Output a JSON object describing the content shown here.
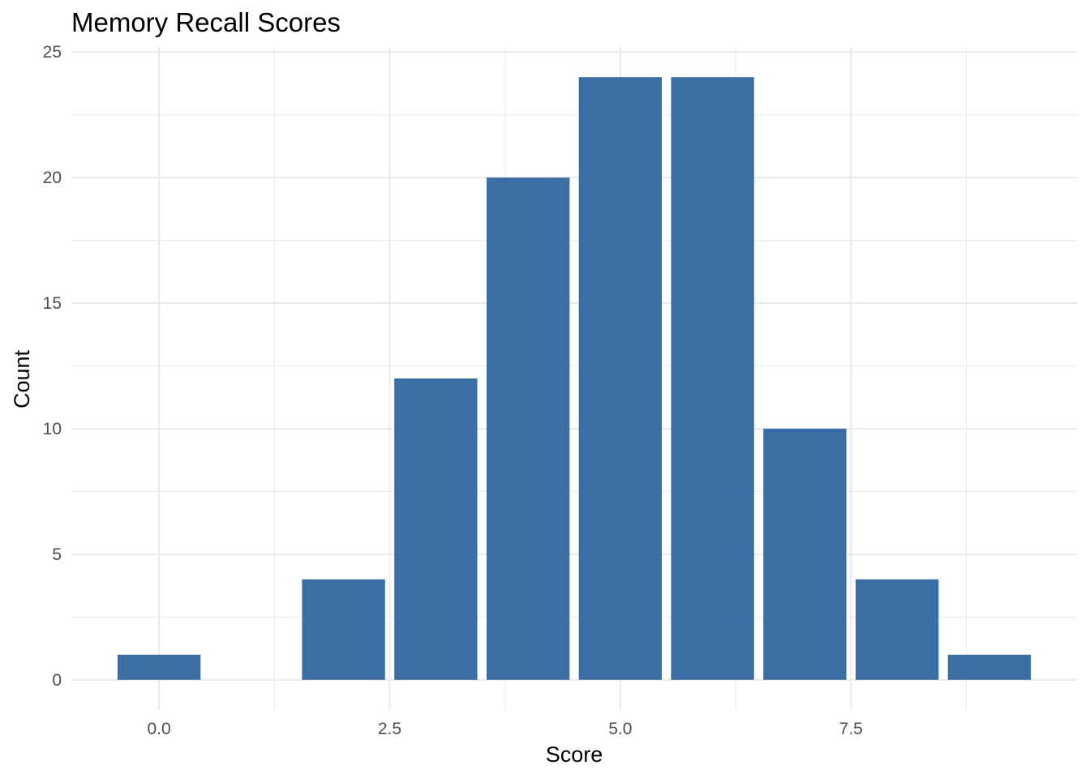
{
  "chart_data": {
    "type": "bar",
    "title": "Memory Recall Scores",
    "xlabel": "Score",
    "ylabel": "Count",
    "x": [
      0,
      2,
      3,
      4,
      5,
      6,
      7,
      8,
      9
    ],
    "values": [
      1,
      4,
      12,
      20,
      24,
      24,
      10,
      4,
      1
    ],
    "bar_width": 0.9,
    "xlim": [
      -0.95,
      9.95
    ],
    "ylim": [
      -1.2,
      25.2
    ],
    "x_ticks": [
      0,
      2.5,
      5,
      7.5
    ],
    "x_tick_labels": [
      "0.0",
      "2.5",
      "5.0",
      "7.5"
    ],
    "x_minor_ticks": [
      1.25,
      3.75,
      6.25,
      8.75
    ],
    "y_ticks": [
      0,
      5,
      10,
      15,
      20,
      25
    ],
    "y_tick_labels": [
      "0",
      "5",
      "10",
      "15",
      "20",
      "25"
    ],
    "y_minor_ticks": [
      2.5,
      7.5,
      12.5,
      17.5,
      22.5
    ],
    "bar_color": "#3a6ea5",
    "grid": true,
    "legend": "none"
  }
}
